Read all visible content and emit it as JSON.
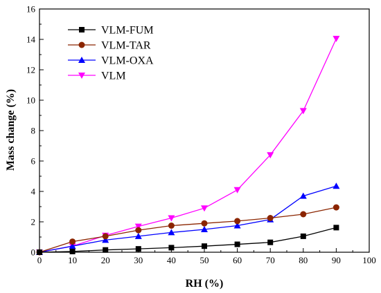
{
  "chart_data": {
    "type": "line",
    "title": "",
    "xlabel": "RH (%)",
    "ylabel": "Mass change (%)",
    "xlim": [
      0,
      100
    ],
    "ylim": [
      0,
      16
    ],
    "x_ticks": [
      "0",
      "10",
      "20",
      "30",
      "40",
      "50",
      "60",
      "70",
      "80",
      "90",
      "100"
    ],
    "y_ticks": [
      "0",
      "2",
      "4",
      "6",
      "8",
      "10",
      "12",
      "14",
      "16"
    ],
    "grid": false,
    "legend_position": "top-left",
    "x": [
      0,
      10,
      20,
      30,
      40,
      50,
      60,
      70,
      80,
      90
    ],
    "series": [
      {
        "name": "VLM-FUM",
        "color": "#000000",
        "marker": "square",
        "values": [
          0.0,
          0.05,
          0.15,
          0.22,
          0.3,
          0.4,
          0.52,
          0.65,
          1.05,
          1.62
        ]
      },
      {
        "name": "VLM-TAR",
        "color": "#8b2500",
        "marker": "circle",
        "values": [
          0.0,
          0.7,
          1.05,
          1.45,
          1.75,
          1.9,
          2.05,
          2.25,
          2.5,
          2.95
        ]
      },
      {
        "name": "VLM-OXA",
        "color": "#0000ff",
        "marker": "triangle-up",
        "values": [
          0.0,
          0.4,
          0.8,
          1.05,
          1.3,
          1.5,
          1.75,
          2.15,
          3.7,
          4.35
        ]
      },
      {
        "name": "VLM",
        "color": "#ff00ff",
        "marker": "triangle-down",
        "values": [
          0.0,
          0.4,
          1.1,
          1.7,
          2.25,
          2.9,
          4.1,
          6.4,
          9.3,
          14.05
        ]
      }
    ]
  }
}
